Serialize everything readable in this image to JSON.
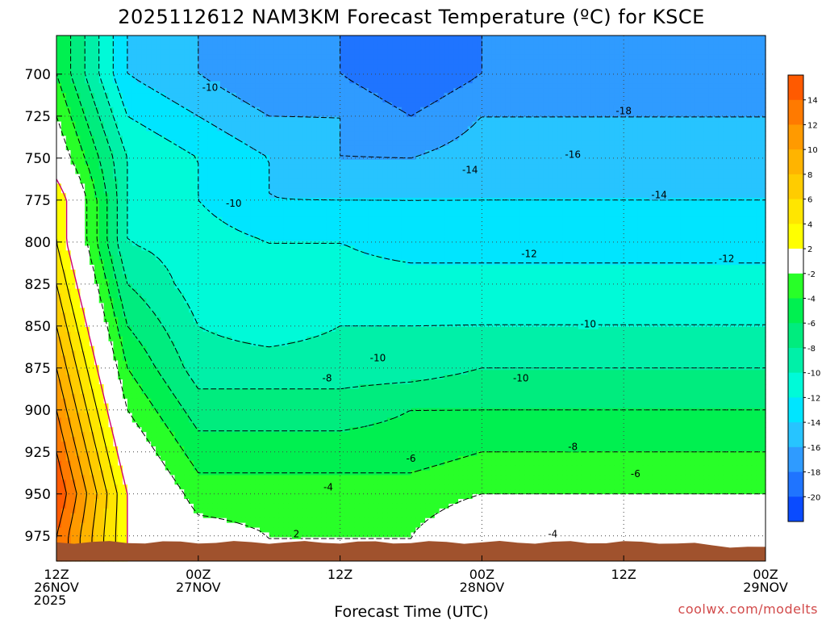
{
  "chart_data": {
    "type": "heatmap",
    "title": "2025112612 NAM3KM Forecast Temperature (ºC) for KSCE",
    "xlabel": "Forecast Time (UTC)",
    "ylabel": "",
    "credit": "coolwx.com/modelts",
    "x_hours": [
      0,
      6,
      12,
      18,
      24,
      30,
      36
    ],
    "x_ticks": [
      {
        "hour": 0,
        "lines": [
          "12Z",
          "26NOV",
          "2025"
        ]
      },
      {
        "hour": 12,
        "lines": [
          "00Z",
          "27NOV"
        ]
      },
      {
        "hour": 24,
        "lines": [
          "12Z"
        ]
      },
      {
        "hour": 36,
        "lines": [
          "00Z",
          "28NOV"
        ]
      },
      {
        "hour": 48,
        "lines": [
          "12Z"
        ]
      },
      {
        "hour": 60,
        "lines": [
          "00Z",
          "29NOV"
        ]
      }
    ],
    "xlim": [
      0,
      60
    ],
    "y_levels_hpa": [
      700,
      725,
      750,
      775,
      800,
      825,
      850,
      875,
      900,
      925,
      950,
      975
    ],
    "ylim_hpa": [
      677,
      990
    ],
    "ground_hpa": 975,
    "temperature_c": [
      [
        -4,
        -14,
        -16,
        -18,
        -18,
        -20,
        -18
      ],
      [
        -2,
        -12,
        -14,
        -16,
        -16,
        -18,
        -16
      ],
      [
        0,
        -10,
        -12,
        -14,
        -16,
        -16,
        -15
      ],
      [
        4,
        -10,
        -12,
        -14,
        -14,
        -14,
        -14
      ],
      [
        4,
        -10,
        -11,
        -12,
        -12,
        -13,
        -13
      ],
      [
        6,
        -8,
        -11,
        -11,
        -11,
        -11,
        -11
      ],
      [
        8,
        -6,
        -10,
        -11,
        -10,
        -10,
        -10
      ],
      [
        10,
        -4,
        -9,
        -9,
        -9,
        -9,
        -8
      ],
      [
        12,
        -2,
        -7,
        -7,
        -7,
        -6,
        -6
      ],
      [
        14,
        0,
        -5,
        -5,
        -5,
        -5,
        -4
      ],
      [
        16,
        2,
        -3,
        -3,
        -3,
        -3,
        -2
      ],
      [
        14,
        2,
        -1,
        -2,
        -2,
        -2,
        0
      ]
    ],
    "contour_labels": [
      {
        "text": "-10",
        "hour": 13.0,
        "hpa": 708
      },
      {
        "text": "-10",
        "hour": 15.0,
        "hpa": 777
      },
      {
        "text": "-10",
        "hour": 27.2,
        "hpa": 869
      },
      {
        "text": "-10",
        "hour": 39.3,
        "hpa": 881
      },
      {
        "text": "-10",
        "hour": 45.0,
        "hpa": 849
      },
      {
        "text": "-18",
        "hour": 48.0,
        "hpa": 722
      },
      {
        "text": "-16",
        "hour": 43.7,
        "hpa": 748
      },
      {
        "text": "-14",
        "hour": 35.0,
        "hpa": 757
      },
      {
        "text": "-14",
        "hour": 51.0,
        "hpa": 772
      },
      {
        "text": "-12",
        "hour": 40.0,
        "hpa": 807
      },
      {
        "text": "-12",
        "hour": 56.7,
        "hpa": 810
      },
      {
        "text": "-8",
        "hour": 22.9,
        "hpa": 881
      },
      {
        "text": "-8",
        "hour": 43.7,
        "hpa": 922
      },
      {
        "text": "-6",
        "hour": 30.0,
        "hpa": 929
      },
      {
        "text": "-6",
        "hour": 49.0,
        "hpa": 938
      },
      {
        "text": "-4",
        "hour": 23.0,
        "hpa": 946
      },
      {
        "text": "-4",
        "hour": 42.0,
        "hpa": 974
      },
      {
        "text": "2",
        "hour": 20.3,
        "hpa": 974
      }
    ],
    "colorbar": {
      "levels": [
        -22,
        -20,
        -18,
        -16,
        -14,
        -12,
        -10,
        -8,
        -6,
        -4,
        -2,
        2,
        4,
        6,
        8,
        10,
        12,
        14,
        16
      ],
      "colors": [
        "#0a4bff",
        "#1f74ff",
        "#2f9bff",
        "#27c4ff",
        "#00e5ff",
        "#00fad8",
        "#00f0a8",
        "#00ec7e",
        "#00f050",
        "#28ff28",
        "#ffffff",
        "#ffff00",
        "#ffe600",
        "#ffcc00",
        "#ffb400",
        "#ff9a00",
        "#ff7a00",
        "#ff5a00"
      ],
      "tick_labels": [
        "14",
        "12",
        "10",
        "8",
        "6",
        "4",
        "2",
        "-2",
        "-4",
        "-6",
        "-8",
        "-10",
        "-12",
        "-14",
        "-16",
        "-18",
        "-20"
      ]
    },
    "ground_color": "#a0522d"
  }
}
